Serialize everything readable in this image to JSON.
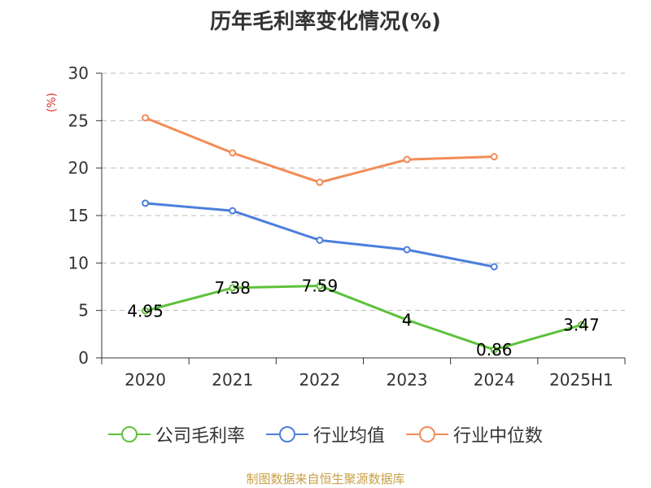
{
  "chart_data": {
    "type": "line",
    "title": "历年毛利率变化情况(%)",
    "ylabel": "(%)",
    "xlabel": "",
    "categories": [
      "2020",
      "2021",
      "2022",
      "2023",
      "2024",
      "2025H1"
    ],
    "ylim": [
      0,
      30
    ],
    "yticks": [
      0,
      5,
      10,
      15,
      20,
      25,
      30
    ],
    "grid": "horizontal-dashed",
    "legend_position": "bottom",
    "series": [
      {
        "name": "公司毛利率",
        "color": "#5ec13b",
        "values": [
          4.95,
          7.38,
          7.59,
          4,
          0.86,
          3.47
        ],
        "labels": [
          "4.95",
          "7.38",
          "7.59",
          "4",
          "0.86",
          "3.47"
        ]
      },
      {
        "name": "行业均值",
        "color": "#4b7fdc",
        "values": [
          16.3,
          15.5,
          12.4,
          11.4,
          9.6,
          null
        ]
      },
      {
        "name": "行业中位数",
        "color": "#f28c58",
        "values": [
          25.3,
          21.6,
          18.5,
          20.9,
          21.2,
          null
        ]
      }
    ]
  },
  "source": {
    "text": "制图数据来自恒生聚源数据库",
    "color": "#c8a046"
  },
  "colors": {
    "unit_label": "#d9312b",
    "axis": "#333333",
    "grid": "#bbbbbb"
  }
}
